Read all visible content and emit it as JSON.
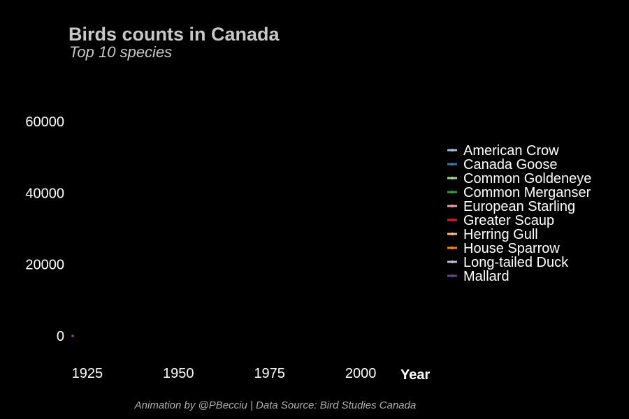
{
  "chart_data": {
    "type": "line",
    "title": "Birds counts in Canada",
    "subtitle": "Top 10 species",
    "xlabel": "Year",
    "ylabel": "",
    "caption": "Animation by @PBecciu | Data Source: Bird Studies Canada",
    "xlim": [
      1921,
      2018
    ],
    "ylim": [
      0,
      68000
    ],
    "x_ticks": [
      1925,
      1950,
      1975,
      2000
    ],
    "y_ticks": [
      0,
      20000,
      40000,
      60000
    ],
    "grid": false,
    "legend_position": "right",
    "series": [
      {
        "name": "American Crow",
        "color": "#9fb9d6",
        "x": [
          1921
        ],
        "y": [
          0
        ]
      },
      {
        "name": "Canada Goose",
        "color": "#2f78b3",
        "x": [
          1921
        ],
        "y": [
          0
        ]
      },
      {
        "name": "Common Goldeneye",
        "color": "#a6d68a",
        "x": [
          1921
        ],
        "y": [
          0
        ]
      },
      {
        "name": "Common Merganser",
        "color": "#33a02c",
        "x": [
          1921
        ],
        "y": [
          0
        ]
      },
      {
        "name": "European Starling",
        "color": "#f49a9a",
        "x": [
          1921
        ],
        "y": [
          0
        ]
      },
      {
        "name": "Greater Scaup",
        "color": "#e31a1c",
        "x": [
          1921
        ],
        "y": [
          0
        ]
      },
      {
        "name": "Herring Gull",
        "color": "#fdbf6f",
        "x": [
          1921
        ],
        "y": [
          0
        ]
      },
      {
        "name": "House Sparrow",
        "color": "#ff7f00",
        "x": [
          1921
        ],
        "y": [
          0
        ]
      },
      {
        "name": "Long-tailed Duck",
        "color": "#cab2d6",
        "x": [
          1921
        ],
        "y": [
          0
        ]
      },
      {
        "name": "Mallard",
        "color": "#6a3d9a",
        "x": [
          1921
        ],
        "y": [
          0
        ]
      }
    ]
  }
}
